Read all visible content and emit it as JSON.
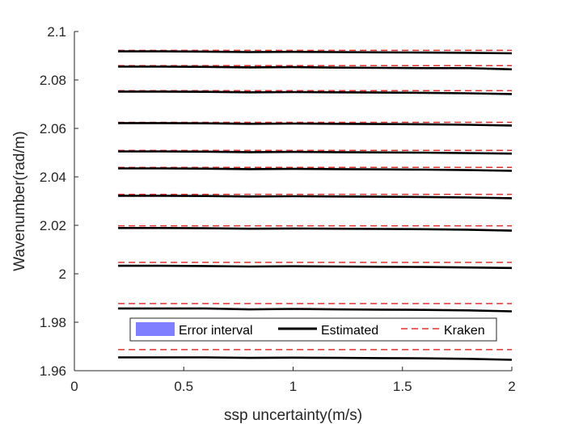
{
  "chart_data": {
    "type": "line",
    "xlabel": "ssp uncertainty(m/s)",
    "ylabel": "Wavenumber(rad/m)",
    "xlim": [
      0,
      2
    ],
    "ylim": [
      1.96,
      2.1
    ],
    "xticks": [
      0,
      0.5,
      1,
      1.5,
      2
    ],
    "xtick_labels": [
      "0",
      "0.5",
      "1",
      "1.5",
      "2"
    ],
    "yticks": [
      1.96,
      1.98,
      2.0,
      2.02,
      2.04,
      2.06,
      2.08,
      2.1
    ],
    "ytick_labels": [
      "1.96",
      "1.98",
      "2",
      "2.02",
      "2.04",
      "2.06",
      "2.08",
      "2.1"
    ],
    "grid": false,
    "legend_position": "bottom-right",
    "legend": [
      {
        "label": "Error interval",
        "style": "patch",
        "color": "#7f7fff"
      },
      {
        "label": "Estimated",
        "style": "solid",
        "color": "#000000"
      },
      {
        "label": "Kraken",
        "style": "dashed",
        "color": "#e03030"
      }
    ],
    "x": [
      0.2,
      0.4,
      0.6,
      0.8,
      1.0,
      1.2,
      1.4,
      1.6,
      1.8,
      2.0
    ],
    "estimated": [
      [
        1.9655,
        1.9655,
        1.9655,
        1.9653,
        1.9654,
        1.9653,
        1.9652,
        1.9651,
        1.9649,
        1.9645
      ],
      [
        1.9857,
        1.9857,
        1.9857,
        1.9853,
        1.9855,
        1.9853,
        1.9852,
        1.9851,
        1.9849,
        1.9845
      ],
      [
        2.0033,
        2.0033,
        2.0032,
        2.003,
        2.0031,
        2.003,
        2.0029,
        2.0028,
        2.0026,
        2.0024
      ],
      [
        2.0189,
        2.0189,
        2.0188,
        2.0186,
        2.0187,
        2.0186,
        2.0185,
        2.0184,
        2.0182,
        2.0178
      ],
      [
        2.0322,
        2.0322,
        2.0321,
        2.0319,
        2.032,
        2.0319,
        2.0318,
        2.0317,
        2.0315,
        2.0312
      ],
      [
        2.0435,
        2.0435,
        2.0434,
        2.0432,
        2.0433,
        2.0432,
        2.0431,
        2.043,
        2.0428,
        2.0425
      ],
      [
        2.0505,
        2.0505,
        2.0504,
        2.0502,
        2.0503,
        2.0502,
        2.0501,
        2.05,
        2.0498,
        2.0496
      ],
      [
        2.0622,
        2.0622,
        2.0621,
        2.0619,
        2.062,
        2.0619,
        2.0618,
        2.0617,
        2.0615,
        2.0612
      ],
      [
        2.0752,
        2.0752,
        2.0751,
        2.0749,
        2.075,
        2.0749,
        2.0748,
        2.0747,
        2.0745,
        2.0742
      ],
      [
        2.0855,
        2.0855,
        2.0854,
        2.0852,
        2.0853,
        2.0851,
        2.085,
        2.0849,
        2.0849,
        2.0844
      ],
      [
        2.0918,
        2.0918,
        2.0917,
        2.0915,
        2.0916,
        2.0915,
        2.0914,
        2.0913,
        2.0912,
        2.091
      ]
    ],
    "kraken": [
      1.9687,
      1.9877,
      2.0047,
      2.0198,
      2.0328,
      2.0439,
      2.0509,
      2.0625,
      2.0756,
      2.0859,
      2.0922
    ]
  }
}
